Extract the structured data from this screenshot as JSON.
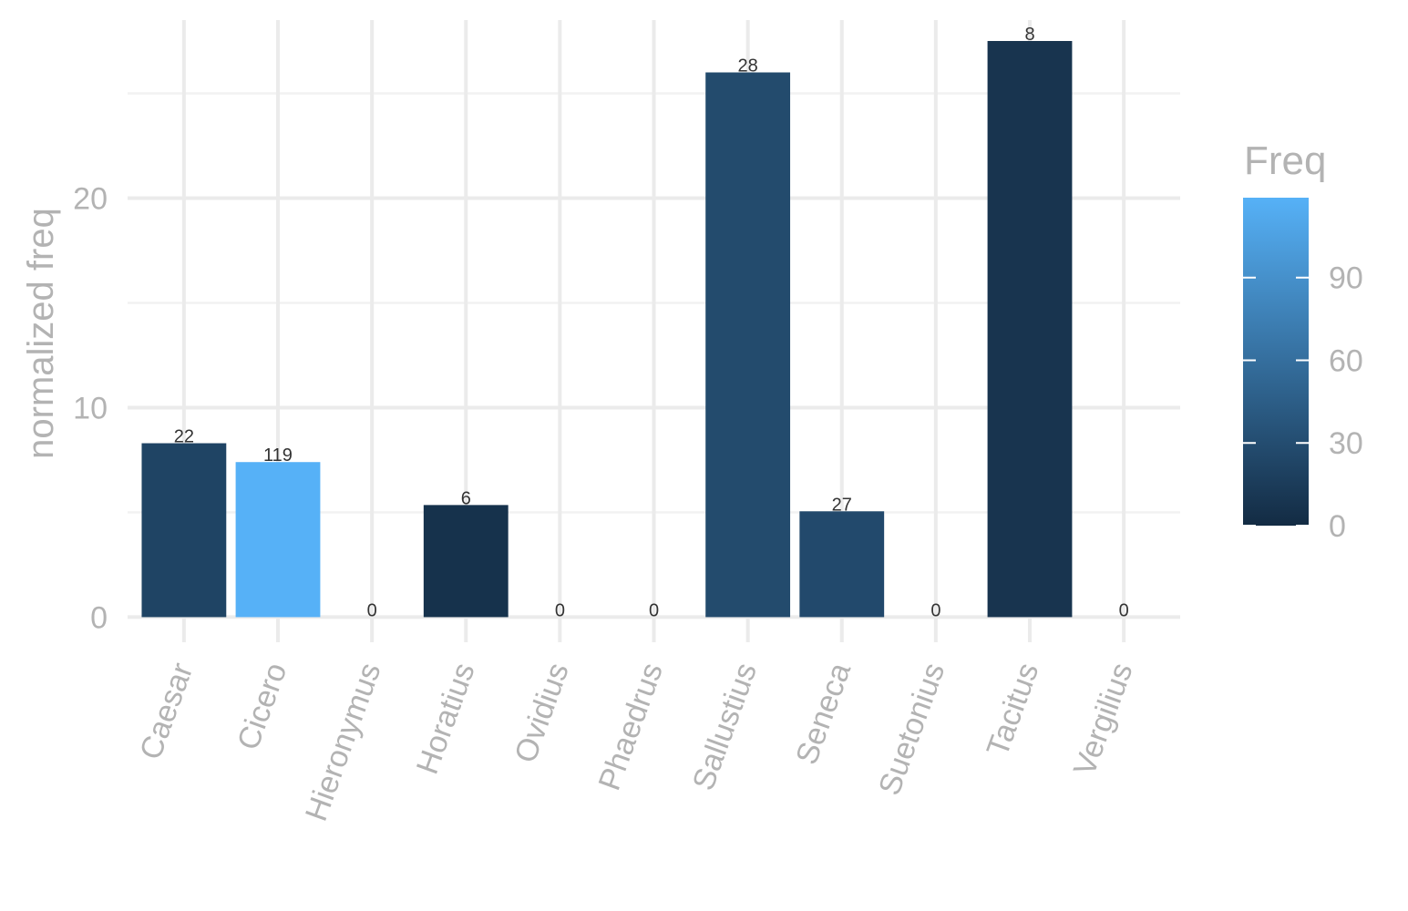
{
  "chart_data": {
    "type": "bar",
    "title": "",
    "xlabel": "",
    "ylabel": "normalized freq",
    "categories": [
      "Caesar",
      "Cicero",
      "Hieronymus",
      "Horatius",
      "Ovidius",
      "Phaedrus",
      "Sallustius",
      "Seneca",
      "Suetonius",
      "Tacitus",
      "Vergilius"
    ],
    "values": [
      8.3,
      7.4,
      0,
      5.35,
      0,
      0,
      26.0,
      5.05,
      0,
      27.5,
      0
    ],
    "freq": [
      22,
      119,
      0,
      6,
      0,
      0,
      28,
      27,
      0,
      8,
      0
    ],
    "bar_labels": [
      "22",
      "119",
      "0",
      "6",
      "0",
      "0",
      "28",
      "27",
      "0",
      "8",
      "0"
    ],
    "ylim": [
      -1.2,
      28.5
    ],
    "yticks": [
      0,
      10,
      20
    ],
    "ytick_labels": [
      "0",
      "10",
      "20"
    ],
    "grid": true,
    "legend": {
      "title": "Freq",
      "placement": "right",
      "type": "colorbar",
      "range": [
        0,
        119
      ],
      "ticks": [
        0,
        30,
        60,
        90
      ],
      "tick_labels": [
        "0",
        "30",
        "60",
        "90"
      ],
      "low_color": "#132b43",
      "high_color": "#56b1f7"
    }
  }
}
